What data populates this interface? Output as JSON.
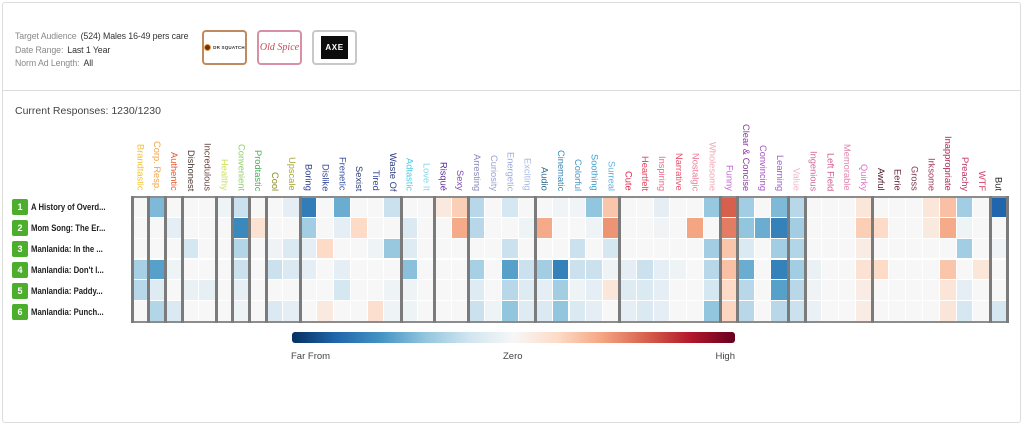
{
  "header": {
    "meta": [
      {
        "key": "Target Audience",
        "value": "(524) Males 16-49 pers care"
      },
      {
        "key": "Date Range:",
        "value": "Last 1 Year"
      },
      {
        "key": "Norm Ad Length:",
        "value": "All"
      }
    ],
    "brands": [
      {
        "name": "DR SQUATCH",
        "border_color": "#c08a5e"
      },
      {
        "name": "Old Spice",
        "border_color": "#d890a4"
      },
      {
        "name": "AXE",
        "border_color": "#c8c8c8"
      }
    ]
  },
  "responses": {
    "label": "Current Responses:",
    "value": "1230/1230"
  },
  "colors": {
    "badge": "#4cae2c"
  },
  "chart_data": {
    "type": "heatmap",
    "title": "",
    "columns": [
      {
        "label": "Brandtastic",
        "color": "#f5c22a",
        "group": 1
      },
      {
        "label": "Corp. Resp.",
        "color": "#f3a541",
        "group": 2
      },
      {
        "label": "Authentic",
        "color": "#e8572c",
        "group": 3
      },
      {
        "label": "Dishonest",
        "color": "#4a3a34",
        "group": 4
      },
      {
        "label": "Incredulous",
        "color": "#6a4a44",
        "group": 4
      },
      {
        "label": "Healthy",
        "color": "#cfe05a",
        "group": 5
      },
      {
        "label": "Convenient",
        "color": "#8fce6a",
        "group": 6
      },
      {
        "label": "Prodtastic",
        "color": "#46b05a",
        "group": 7
      },
      {
        "label": "Cool",
        "color": "#8a8a20",
        "group": 8
      },
      {
        "label": "Upscale",
        "color": "#a8a83a",
        "group": 8
      },
      {
        "label": "Boring",
        "color": "#2c3e8a",
        "group": 9
      },
      {
        "label": "Dislike",
        "color": "#34469a",
        "group": 9
      },
      {
        "label": "Frenetic",
        "color": "#3a52a4",
        "group": 9
      },
      {
        "label": "Sexist",
        "color": "#2c3a7a",
        "group": 9
      },
      {
        "label": "Tired",
        "color": "#34469a",
        "group": 9
      },
      {
        "label": "Waste Of",
        "color": "#2a3a80",
        "group": 9
      },
      {
        "label": "Adtastic",
        "color": "#4cc8e0",
        "group": 10
      },
      {
        "label": "Love It",
        "color": "#80d8ee",
        "group": 10
      },
      {
        "label": "Risqué",
        "color": "#5a2a9a",
        "group": 11
      },
      {
        "label": "Sexy",
        "color": "#7a4ab8",
        "group": 11
      },
      {
        "label": "Arresting",
        "color": "#8a8ab8",
        "group": 12
      },
      {
        "label": "Curiosity",
        "color": "#9aa0d0",
        "group": 12
      },
      {
        "label": "Energetic",
        "color": "#a0aadc",
        "group": 12
      },
      {
        "label": "Exciting",
        "color": "#aab8e6",
        "group": 12
      },
      {
        "label": "Audio",
        "color": "#2a6a8a",
        "group": 13
      },
      {
        "label": "Cinematic",
        "color": "#3a86b4",
        "group": 13
      },
      {
        "label": "Colorful",
        "color": "#4a96c4",
        "group": 13
      },
      {
        "label": "Soothing",
        "color": "#3aa0d0",
        "group": 13
      },
      {
        "label": "Surreal",
        "color": "#60b0e0",
        "group": 13
      },
      {
        "label": "Cute",
        "color": "#e0204a",
        "group": 14
      },
      {
        "label": "Heartfelt",
        "color": "#e8405a",
        "group": 14
      },
      {
        "label": "Inspiring",
        "color": "#f06a8a",
        "group": 14
      },
      {
        "label": "Narrative",
        "color": "#e8506a",
        "group": 14
      },
      {
        "label": "Nostalgic",
        "color": "#f07a9a",
        "group": 14
      },
      {
        "label": "Wholesome",
        "color": "#f4a6b8",
        "group": 14
      },
      {
        "label": "Funny",
        "color": "#c464d4",
        "group": 15
      },
      {
        "label": "Clear & Concise",
        "color": "#8a3aa0",
        "group": 16
      },
      {
        "label": "Convincing",
        "color": "#a850c4",
        "group": 16
      },
      {
        "label": "Learning",
        "color": "#9a60c8",
        "group": 16
      },
      {
        "label": "Value",
        "color": "#f2b4cc",
        "group": 17
      },
      {
        "label": "Ingenious",
        "color": "#d06a9a",
        "group": 18
      },
      {
        "label": "Left Field",
        "color": "#d05a8a",
        "group": 18
      },
      {
        "label": "Memorable",
        "color": "#e484ac",
        "group": 18
      },
      {
        "label": "Quirky",
        "color": "#e070c8",
        "group": 18
      },
      {
        "label": "Awful",
        "color": "#4a1a2a",
        "group": 19
      },
      {
        "label": "Eerie",
        "color": "#6a2a3a",
        "group": 19
      },
      {
        "label": "Gross",
        "color": "#7a3a4a",
        "group": 19
      },
      {
        "label": "Irksome",
        "color": "#a03a5a",
        "group": 19
      },
      {
        "label": "Inappropriate",
        "color": "#b02a5a",
        "group": 19
      },
      {
        "label": "Preachy",
        "color": "#c03a6a",
        "group": 19
      },
      {
        "label": "WTF",
        "color": "#d0406a",
        "group": 19
      },
      {
        "label": "But",
        "color": "#222222",
        "group": 20
      }
    ],
    "rows": [
      {
        "rank": "1",
        "label": "A History of Overd..."
      },
      {
        "rank": "2",
        "label": "Mom Song: The Er..."
      },
      {
        "rank": "3",
        "label": "Manlanida: In the ..."
      },
      {
        "rank": "4",
        "label": "Manlandia: Don't l..."
      },
      {
        "rank": "5",
        "label": "Manlandia: Paddy..."
      },
      {
        "rank": "6",
        "label": "Manlandia: Punch..."
      }
    ],
    "values": [
      [
        0,
        -0.45,
        0,
        0,
        0,
        -0.05,
        -0.22,
        0,
        0,
        -0.1,
        -0.7,
        0,
        -0.5,
        0,
        0,
        -0.22,
        0,
        0,
        0.1,
        0.25,
        -0.28,
        0,
        -0.18,
        0,
        0,
        -0.03,
        -0.03,
        -0.4,
        0.28,
        0,
        0,
        -0.1,
        0,
        0,
        -0.38,
        0.6,
        -0.35,
        0,
        -0.45,
        -0.28,
        0,
        0,
        0,
        0.12,
        0,
        0,
        0,
        0.12,
        0.3,
        -0.35,
        0,
        -0.8
      ],
      [
        0,
        0,
        -0.1,
        0,
        0,
        0,
        -0.65,
        0.15,
        0,
        0,
        -0.35,
        0,
        -0.1,
        0.2,
        0,
        0,
        -0.15,
        0,
        0,
        0.38,
        -0.28,
        0,
        0,
        -0.05,
        0.38,
        0,
        0,
        -0.05,
        0.45,
        0,
        0,
        -0.03,
        0,
        0.4,
        0,
        0.52,
        -0.4,
        -0.5,
        -0.68,
        -0.35,
        0,
        0,
        0,
        0.25,
        0.2,
        0,
        0,
        0.1,
        0.38,
        -0.05,
        0,
        0
      ],
      [
        0,
        0,
        0,
        -0.18,
        0,
        0,
        -0.3,
        0,
        -0.04,
        -0.15,
        -0.1,
        0.2,
        0,
        0,
        -0.05,
        -0.38,
        -0.13,
        0,
        0,
        0,
        0,
        0,
        -0.22,
        0,
        0,
        0,
        -0.22,
        0,
        -0.18,
        0,
        0,
        0,
        0,
        0,
        -0.35,
        0.28,
        -0.15,
        0,
        -0.35,
        -0.3,
        0,
        0,
        0,
        0.08,
        0,
        0,
        0,
        0,
        0,
        -0.35,
        0,
        -0.04
      ],
      [
        -0.33,
        -0.55,
        -0.05,
        0,
        0,
        0,
        -0.22,
        0,
        -0.22,
        -0.15,
        -0.1,
        0,
        -0.1,
        0,
        0,
        0,
        -0.42,
        0,
        0,
        0,
        -0.33,
        0,
        -0.55,
        -0.22,
        -0.35,
        -0.68,
        -0.22,
        -0.22,
        -0.05,
        -0.1,
        -0.22,
        -0.1,
        -0.05,
        0,
        -0.28,
        0.3,
        -0.5,
        0,
        -0.68,
        -0.35,
        -0.07,
        0,
        0,
        0.15,
        0.2,
        0,
        0,
        0,
        0.28,
        0,
        0.12,
        0
      ],
      [
        -0.28,
        -0.13,
        0,
        -0.07,
        -0.09,
        0,
        -0.09,
        0,
        0,
        0,
        0,
        0,
        -0.18,
        0,
        0,
        -0.05,
        -0.05,
        0,
        0,
        0,
        -0.13,
        0,
        -0.28,
        -0.13,
        -0.1,
        -0.35,
        -0.05,
        -0.1,
        0.12,
        -0.13,
        -0.15,
        -0.1,
        0,
        0,
        -0.18,
        0.2,
        -0.28,
        0,
        -0.55,
        -0.28,
        -0.04,
        0,
        0,
        0.08,
        0,
        0,
        0,
        0,
        0.13,
        -0.1,
        0,
        0
      ],
      [
        0,
        -0.3,
        -0.15,
        0,
        0,
        0,
        -0.05,
        0,
        -0.15,
        -0.1,
        0,
        0.1,
        0,
        0,
        0.17,
        -0.05,
        -0.05,
        0,
        0,
        0,
        -0.22,
        -0.05,
        -0.4,
        -0.13,
        -0.15,
        -0.4,
        -0.15,
        -0.1,
        0,
        -0.1,
        -0.15,
        -0.1,
        0,
        0,
        -0.4,
        0.22,
        -0.28,
        0,
        -0.28,
        -0.22,
        -0.07,
        0,
        0,
        0.08,
        0,
        0,
        0,
        0,
        0.13,
        -0.18,
        0,
        -0.18
      ]
    ],
    "scale": {
      "min": -1,
      "max": 1,
      "labels": {
        "min": "Far From",
        "mid": "Zero",
        "max": "High"
      },
      "colors": [
        "#053061",
        "#2166ac",
        "#4393c3",
        "#92c5de",
        "#d1e5f0",
        "#f7f7f7",
        "#fddbc7",
        "#f4a582",
        "#d6604d",
        "#b2182b",
        "#67001f"
      ]
    },
    "legend": "bottom"
  }
}
